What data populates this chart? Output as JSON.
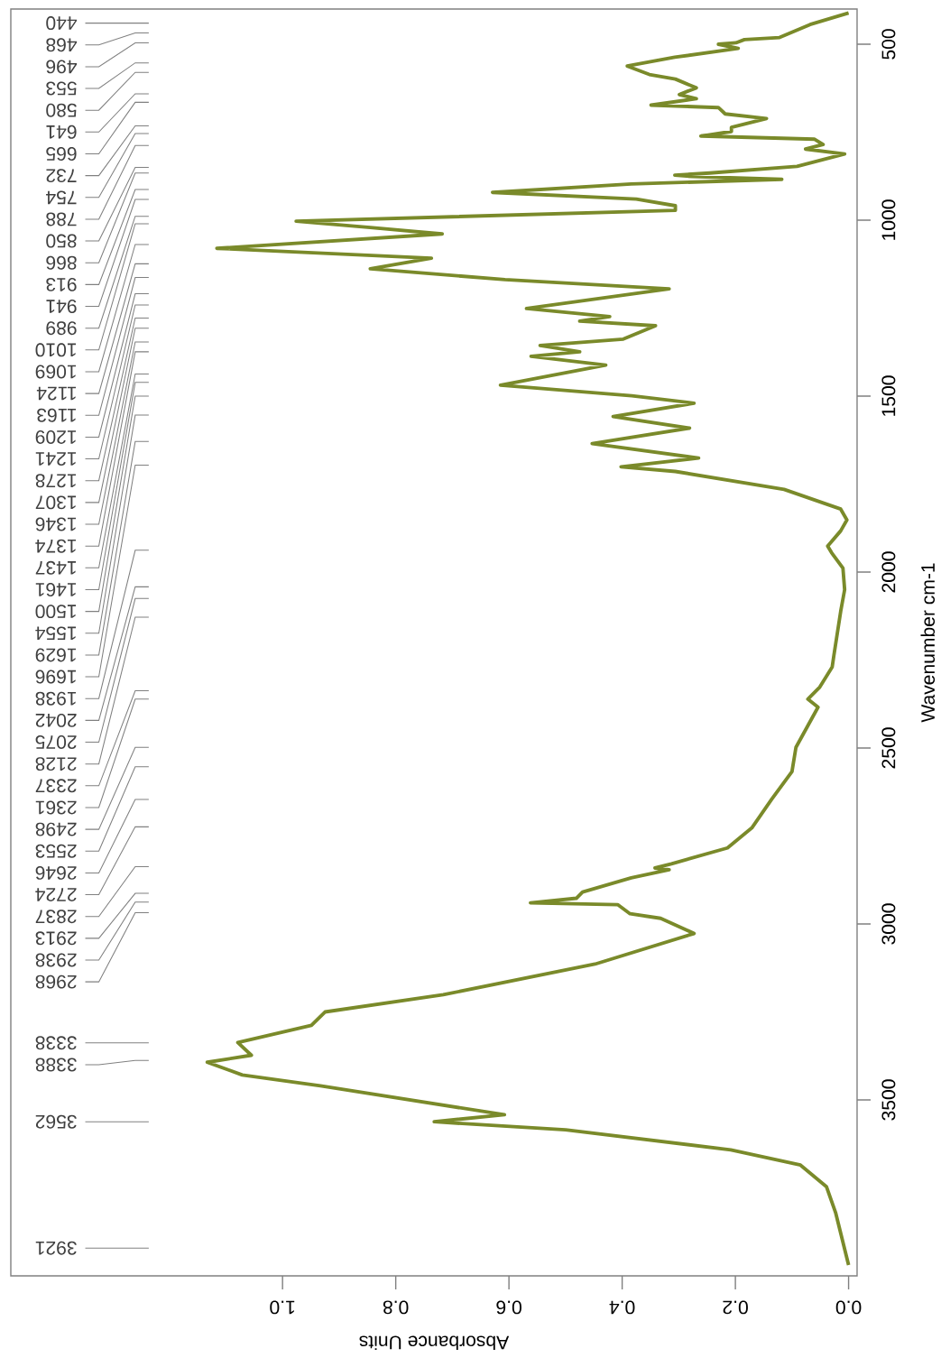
{
  "chart_data": {
    "type": "line",
    "xlabel": "Absorbance Units",
    "ylabel": "Wavenumber cm-1",
    "color": "#7a8a2a",
    "xlim": [
      1.48,
      -0.015
    ],
    "ylim": [
      4000,
      400
    ],
    "xticks": [
      {
        "value": 0,
        "label": "0.0"
      },
      {
        "value": 0.2,
        "label": "0.2"
      },
      {
        "value": 0.4,
        "label": "0.4"
      },
      {
        "value": 0.6,
        "label": "0.6"
      },
      {
        "value": 0.8,
        "label": "0.8"
      },
      {
        "value": 1.0,
        "label": "1.0"
      }
    ],
    "yticks": [
      500,
      1000,
      1500,
      2000,
      2500,
      3000,
      3500
    ],
    "x": [
      0.0,
      0.068,
      0.122,
      0.184,
      0.199,
      0.23,
      0.195,
      0.307,
      0.391,
      0.352,
      0.306,
      0.269,
      0.299,
      0.269,
      0.349,
      0.23,
      0.218,
      0.145,
      0.207,
      0.207,
      0.261,
      0.06,
      0.045,
      0.076,
      0.007,
      0.091,
      0.245,
      0.307,
      0.276,
      0.118,
      0.384,
      0.629,
      0.375,
      0.306,
      0.306,
      0.976,
      0.845,
      0.718,
      1.116,
      0.737,
      0.845,
      0.607,
      0.317,
      0.569,
      0.422,
      0.475,
      0.341,
      0.398,
      0.545,
      0.475,
      0.561,
      0.429,
      0.615,
      0.383,
      0.273,
      0.416,
      0.281,
      0.453,
      0.265,
      0.402,
      0.306,
      0.114,
      0.014,
      0.003,
      0.014,
      0.037,
      0.03,
      0.01,
      0.007,
      0.014,
      0.026,
      0.029,
      0.051,
      0.072,
      0.054,
      0.093,
      0.1,
      0.136,
      0.171,
      0.214,
      0.313,
      0.342,
      0.317,
      0.384,
      0.47,
      0.481,
      0.562,
      0.408,
      0.386,
      0.332,
      0.273,
      0.448,
      0.716,
      0.925,
      0.949,
      1.079,
      1.055,
      1.133,
      1.071,
      0.933,
      0.608,
      0.732,
      0.5,
      0.208,
      0.085,
      0.039,
      0.023,
      0.0
    ],
    "values": [
      411,
      444,
      481,
      487,
      496,
      500,
      512,
      537,
      562,
      586,
      599,
      624,
      643,
      655,
      673,
      680,
      698,
      711,
      736,
      748,
      761,
      770,
      785,
      798,
      812,
      847,
      866,
      872,
      876,
      884,
      897,
      921,
      940,
      959,
      972,
      1003,
      1021,
      1039,
      1080,
      1108,
      1138,
      1169,
      1195,
      1251,
      1274,
      1287,
      1300,
      1338,
      1356,
      1374,
      1387,
      1412,
      1469,
      1499,
      1520,
      1558,
      1591,
      1635,
      1676,
      1701,
      1714,
      1765,
      1821,
      1852,
      1883,
      1926,
      1945,
      1989,
      2050,
      2112,
      2237,
      2270,
      2327,
      2361,
      2384,
      2498,
      2567,
      2646,
      2727,
      2784,
      2829,
      2841,
      2846,
      2869,
      2909,
      2927,
      2940,
      2945,
      2971,
      2984,
      3027,
      3114,
      3201,
      3250,
      3288,
      3337,
      3373,
      3393,
      3429,
      3460,
      3542,
      3562,
      3585,
      3642,
      3685,
      3747,
      3820,
      3969
    ],
    "annotations": [
      "440",
      "468",
      "496",
      "553",
      "580",
      "641",
      "665",
      "732",
      "754",
      "788",
      "850",
      "866",
      "913",
      "941",
      "989",
      "1010",
      "1069",
      "1124",
      "1163",
      "1209",
      "1241",
      "1278",
      "1307",
      "1346",
      "1374",
      "1437",
      "1461",
      "1500",
      "1554",
      "1629",
      "1696",
      "1938",
      "2042",
      "2075",
      "2128",
      "2337",
      "2361",
      "2498",
      "2553",
      "2646",
      "2724",
      "2837",
      "2913",
      "2938",
      "2968",
      "3338",
      "3388",
      "3562",
      "3921"
    ]
  }
}
